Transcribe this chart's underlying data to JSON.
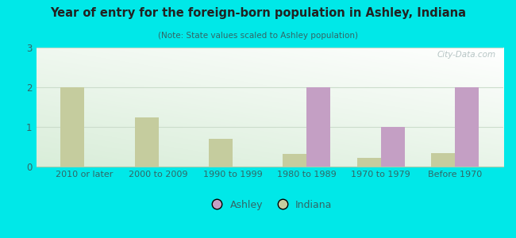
{
  "title": "Year of entry for the foreign-born population in Ashley, Indiana",
  "subtitle": "(Note: State values scaled to Ashley population)",
  "categories": [
    "2010 or later",
    "2000 to 2009",
    "1990 to 1999",
    "1980 to 1989",
    "1970 to 1979",
    "Before 1970"
  ],
  "ashley_values": [
    0,
    0,
    0,
    2.0,
    1.0,
    2.0
  ],
  "indiana_values": [
    2.0,
    1.25,
    0.7,
    0.33,
    0.22,
    0.35
  ],
  "ashley_color": "#c49fc4",
  "indiana_color": "#c5cc9e",
  "background_color": "#00e8e8",
  "ylim": [
    0,
    3
  ],
  "yticks": [
    0,
    1,
    2,
    3
  ],
  "bar_width": 0.32,
  "watermark": "City-Data.com",
  "legend_ashley": "Ashley",
  "legend_indiana": "Indiana",
  "title_color": "#222222",
  "subtitle_color": "#336666",
  "tick_color": "#336666",
  "grid_color": "#ccddcc"
}
